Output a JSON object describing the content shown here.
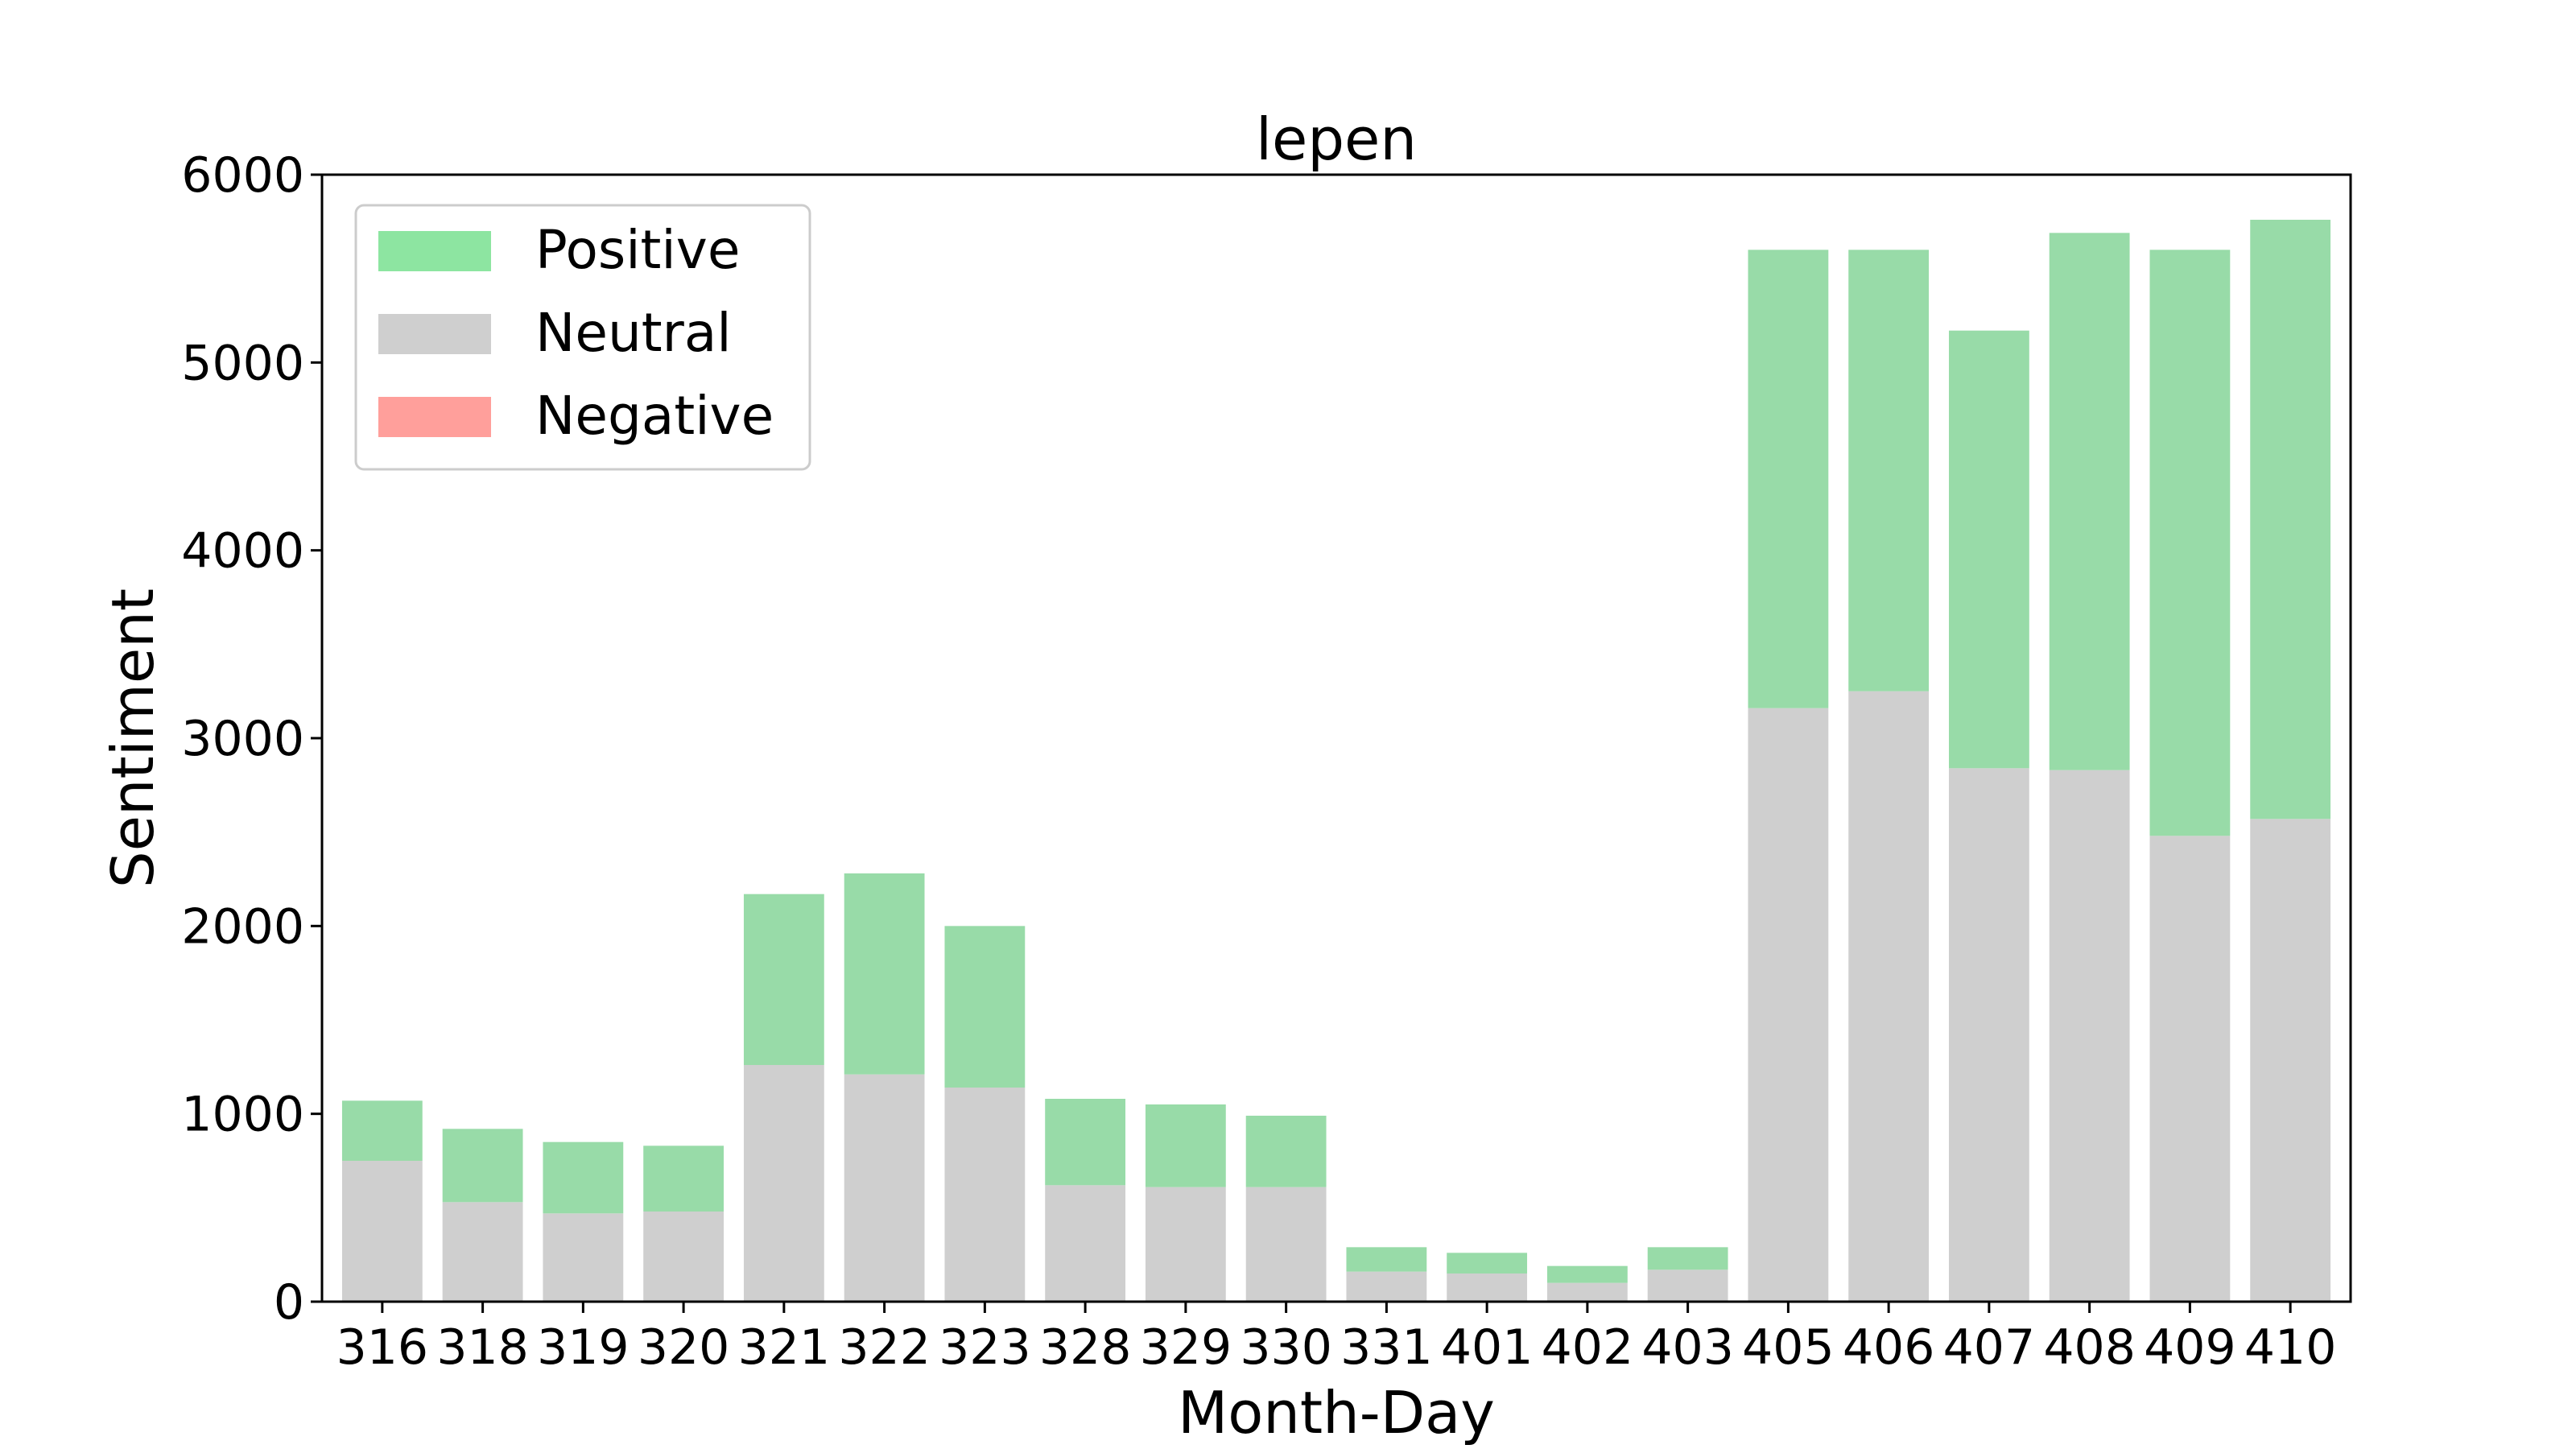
{
  "chart_data": {
    "type": "bar",
    "stacked": true,
    "title": "lepen",
    "xlabel": "Month-Day",
    "ylabel": "Sentiment",
    "ylim": [
      0,
      6000
    ],
    "yticks": [
      "0",
      "1000",
      "2000",
      "3000",
      "4000",
      "5000",
      "6000"
    ],
    "categories": [
      "316",
      "318",
      "319",
      "320",
      "321",
      "322",
      "323",
      "328",
      "329",
      "330",
      "331",
      "401",
      "402",
      "403",
      "405",
      "406",
      "407",
      "408",
      "409",
      "410"
    ],
    "series": [
      {
        "name": "Negative",
        "color": "#ff9f9b",
        "values": [
          0,
          0,
          0,
          0,
          0,
          0,
          0,
          0,
          0,
          0,
          0,
          0,
          0,
          0,
          0,
          0,
          0,
          0,
          0,
          0
        ]
      },
      {
        "name": "Neutral",
        "color": "#cfcfcf",
        "values": [
          750,
          530,
          470,
          480,
          1260,
          1210,
          1140,
          620,
          610,
          610,
          160,
          150,
          100,
          170,
          3160,
          3250,
          2840,
          2830,
          2480,
          2570
        ]
      },
      {
        "name": "Positive",
        "color": "#98dba8",
        "values": [
          320,
          390,
          380,
          350,
          910,
          1070,
          860,
          460,
          440,
          380,
          130,
          110,
          90,
          120,
          2440,
          2350,
          2330,
          2860,
          3120,
          3190
        ]
      }
    ],
    "legend": {
      "position": "top-left",
      "entries": [
        {
          "label": "Positive",
          "color": "#8de5a1"
        },
        {
          "label": "Neutral",
          "color": "#cfcfcf"
        },
        {
          "label": "Negative",
          "color": "#ff9f9b"
        }
      ]
    },
    "grid": false
  }
}
